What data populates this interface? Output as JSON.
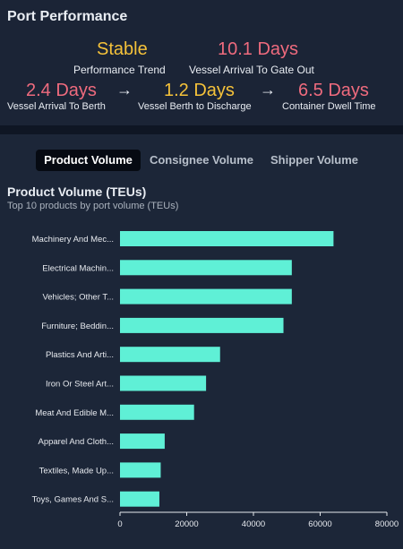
{
  "header": {
    "title": "Port Performance"
  },
  "metrics": {
    "trend": {
      "value": "Stable",
      "label": "Performance Trend"
    },
    "gate_out": {
      "value": "10.1 Days",
      "label": "Vessel Arrival To Gate Out"
    },
    "to_berth": {
      "value": "2.4 Days",
      "label": "Vessel Arrival To Berth"
    },
    "to_discharge": {
      "value": "1.2 Days",
      "label": "Vessel Berth to Discharge"
    },
    "dwell": {
      "value": "6.5 Days",
      "label": "Container Dwell Time"
    },
    "arrow": "→"
  },
  "tabs": [
    {
      "label": "Product Volume",
      "active": true
    },
    {
      "label": "Consignee Volume",
      "active": false
    },
    {
      "label": "Shipper Volume",
      "active": false
    }
  ],
  "chart_title": "Product Volume (TEUs)",
  "chart_subtitle": "Top 10 products by port volume (TEUs)",
  "colors": {
    "bar": "#5ff0d6",
    "yellow": "#f5c23a",
    "red": "#ef6b7e"
  },
  "chart_data": {
    "type": "bar",
    "orientation": "horizontal",
    "categories": [
      "Machinery And Mec...",
      "Electrical Machin...",
      "Vehicles; Other T...",
      "Furniture; Beddin...",
      "Plastics And Arti...",
      "Iron Or Steel Art...",
      "Meat And Edible M...",
      "Apparel And Cloth...",
      "Textiles, Made Up...",
      "Toys, Games And S..."
    ],
    "values": [
      64000,
      51500,
      51500,
      49000,
      30000,
      25800,
      22200,
      13400,
      12200,
      11800
    ],
    "xlim": [
      0,
      80000
    ],
    "xticks": [
      "0",
      "20000",
      "40000",
      "60000",
      "80000"
    ],
    "grid": false
  }
}
